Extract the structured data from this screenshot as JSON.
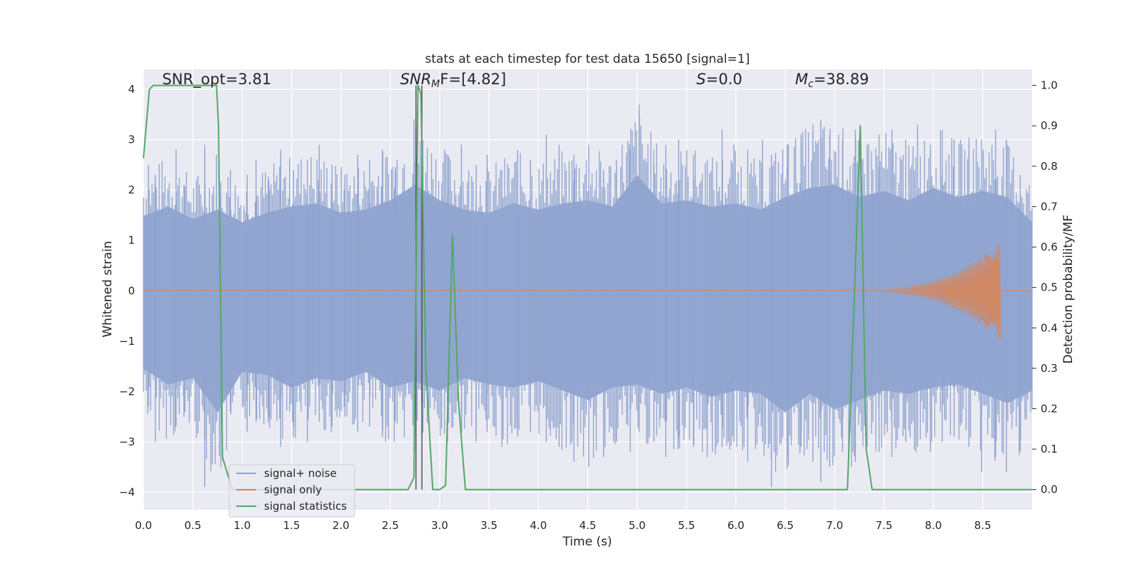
{
  "chart_data": {
    "type": "line",
    "title": "stats at each timestep for test data 15650 [signal=1]",
    "xlabel": "Time (s)",
    "ylabel_left": "Whitened strain",
    "ylabel_right": "Detection probability/MF",
    "xlim": [
      0.0,
      9.0
    ],
    "ylim_left": [
      -4.35,
      4.4
    ],
    "ylim_right": [
      -0.05,
      1.04
    ],
    "x_ticks": [
      "0.0",
      "0.5",
      "1.0",
      "1.5",
      "2.0",
      "2.5",
      "3.0",
      "3.5",
      "4.0",
      "4.5",
      "5.0",
      "5.5",
      "6.0",
      "6.5",
      "7.0",
      "7.5",
      "8.0",
      "8.5"
    ],
    "x_tick_values": [
      0.0,
      0.5,
      1.0,
      1.5,
      2.0,
      2.5,
      3.0,
      3.5,
      4.0,
      4.5,
      5.0,
      5.5,
      6.0,
      6.5,
      7.0,
      7.5,
      8.0,
      8.5
    ],
    "y_left_ticks": [
      "4",
      "3",
      "2",
      "1",
      "0",
      "−1",
      "−2",
      "−3",
      "−4"
    ],
    "y_left_tick_values": [
      4,
      3,
      2,
      1,
      0,
      -1,
      -2,
      -3,
      -4
    ],
    "y_right_ticks": [
      "1.0",
      "0.9",
      "0.8",
      "0.7",
      "0.6",
      "0.5",
      "0.4",
      "0.3",
      "0.2",
      "0.1",
      "0.0"
    ],
    "y_right_tick_values": [
      1.0,
      0.9,
      0.8,
      0.7,
      0.6,
      0.5,
      0.4,
      0.3,
      0.2,
      0.1,
      0.0
    ],
    "grid": true,
    "legend_placement": "lower-left",
    "annotations": [
      {
        "text": "SNR_opt=3.81",
        "x": 0.19,
        "y": 4.1
      },
      {
        "text": "SNR",
        "sub": "M",
        "suffix": "F=[4.82]",
        "italic": true,
        "x": 2.6,
        "y": 4.1
      },
      {
        "text": "S",
        "suffix": "=0.0",
        "italic": true,
        "x": 5.6,
        "y": 4.1
      },
      {
        "text": "M",
        "sub": "c",
        "suffix": "=38.89",
        "italic": true,
        "x": 6.6,
        "y": 4.1
      }
    ],
    "vertical_markers_x": [
      2.76,
      2.82
    ],
    "series": [
      {
        "name": "signal+ noise",
        "axis": "left",
        "color": "#8fa4cf",
        "envelope": {
          "x": [
            0.0,
            0.25,
            0.5,
            0.75,
            1.0,
            1.25,
            1.5,
            1.75,
            2.0,
            2.25,
            2.5,
            2.75,
            3.0,
            3.25,
            3.5,
            3.75,
            4.0,
            4.25,
            4.5,
            4.75,
            5.0,
            5.25,
            5.5,
            5.75,
            6.0,
            6.25,
            6.5,
            6.75,
            7.0,
            7.25,
            7.5,
            7.75,
            8.0,
            8.25,
            8.5,
            8.75,
            9.0
          ],
          "upper": [
            2.4,
            2.7,
            2.3,
            2.6,
            2.2,
            2.5,
            2.7,
            2.8,
            2.5,
            2.6,
            2.9,
            3.4,
            2.9,
            2.6,
            2.5,
            2.8,
            2.6,
            2.8,
            2.9,
            2.7,
            3.7,
            2.8,
            2.9,
            2.7,
            2.8,
            2.6,
            3.0,
            3.3,
            3.4,
            3.0,
            3.2,
            2.9,
            3.3,
            3.0,
            3.2,
            3.0,
            2.2
          ],
          "lower": [
            -2.5,
            -3.0,
            -2.8,
            -3.9,
            -2.6,
            -2.7,
            -3.1,
            -2.8,
            -2.9,
            -2.6,
            -3.1,
            -2.9,
            -3.2,
            -2.8,
            -3.0,
            -3.1,
            -2.9,
            -3.2,
            -3.5,
            -3.1,
            -3.0,
            -3.3,
            -3.1,
            -3.4,
            -3.2,
            -3.3,
            -3.9,
            -3.3,
            -3.8,
            -3.5,
            -3.2,
            -3.3,
            -3.1,
            -3.0,
            -3.3,
            -3.6,
            -3.2
          ]
        },
        "spikes_x": [
          0.05,
          0.12,
          0.33,
          0.41,
          0.62,
          0.74,
          0.88,
          1.05,
          1.14,
          1.27,
          1.39,
          1.52,
          1.66,
          1.78,
          1.91,
          2.04,
          2.17,
          2.29,
          2.42,
          2.55,
          2.74,
          2.83,
          3.08,
          3.22,
          3.37,
          3.48,
          3.63,
          3.79,
          3.92,
          4.08,
          4.21,
          4.36,
          4.51,
          4.66,
          4.79,
          4.93,
          5.02,
          5.17,
          5.29,
          5.42,
          5.57,
          5.71,
          5.86,
          5.98,
          6.12,
          6.27,
          6.36,
          6.52,
          6.66,
          6.78,
          6.86,
          6.95,
          7.08,
          7.21,
          7.33,
          7.45,
          7.58,
          7.72,
          7.84,
          7.97,
          8.09,
          8.21,
          8.36,
          8.49,
          8.63,
          8.74,
          8.88
        ],
        "spikes_hi": [
          2.5,
          2.3,
          2.8,
          2.1,
          2.9,
          2.7,
          2.4,
          2.3,
          2.6,
          2.2,
          2.8,
          2.4,
          2.6,
          2.9,
          2.5,
          2.3,
          2.7,
          2.6,
          2.8,
          2.4,
          3.4,
          3.0,
          2.7,
          2.9,
          2.5,
          2.7,
          2.4,
          2.8,
          2.6,
          3.1,
          2.9,
          2.7,
          2.9,
          2.4,
          2.6,
          2.8,
          3.7,
          2.5,
          2.9,
          3.0,
          2.7,
          2.6,
          3.2,
          2.9,
          2.8,
          3.0,
          2.7,
          2.9,
          3.1,
          3.3,
          3.4,
          3.1,
          3.0,
          3.2,
          2.9,
          3.1,
          3.2,
          3.0,
          3.3,
          2.9,
          3.2,
          3.0,
          2.9,
          3.0,
          3.2,
          3.0,
          2.3
        ],
        "spikes_lo": [
          -2.3,
          -3.0,
          -2.7,
          -2.5,
          -3.9,
          -2.6,
          -2.4,
          -2.8,
          -2.6,
          -2.5,
          -3.1,
          -2.9,
          -3.0,
          -2.6,
          -2.7,
          -2.5,
          -2.8,
          -2.7,
          -2.9,
          -2.6,
          -3.2,
          -2.8,
          -3.0,
          -2.7,
          -3.0,
          -2.8,
          -3.1,
          -2.9,
          -2.8,
          -3.0,
          -3.1,
          -3.4,
          -3.5,
          -3.3,
          -3.0,
          -3.2,
          -2.8,
          -3.0,
          -3.3,
          -2.9,
          -3.1,
          -3.3,
          -3.1,
          -3.0,
          -3.4,
          -3.0,
          -3.9,
          -3.3,
          -3.1,
          -3.4,
          -3.8,
          -3.5,
          -3.2,
          -3.4,
          -3.1,
          -3.2,
          -3.3,
          -3.0,
          -3.1,
          -3.2,
          -3.0,
          -2.9,
          -3.1,
          -3.6,
          -3.3,
          -3.6,
          -3.2
        ]
      },
      {
        "name": "signal only",
        "axis": "left",
        "color": "#dd8452",
        "chirp": {
          "x_start": 7.0,
          "x_end": 8.68,
          "amplitude_end": 1.0
        }
      },
      {
        "name": "signal statistics",
        "axis": "right",
        "color": "#55a868",
        "x": [
          0.0,
          0.06,
          0.1,
          0.15,
          0.3,
          0.5,
          0.7,
          0.74,
          0.76,
          0.8,
          0.9,
          1.5,
          2.0,
          2.5,
          2.68,
          2.74,
          2.78,
          2.81,
          2.86,
          2.93,
          3.0,
          3.06,
          3.13,
          3.19,
          3.26,
          4.0,
          5.0,
          6.0,
          7.0,
          7.13,
          7.2,
          7.26,
          7.32,
          7.38,
          8.0,
          8.5,
          9.0
        ],
        "y": [
          0.82,
          0.99,
          1.0,
          1.0,
          1.0,
          1.0,
          1.0,
          1.0,
          0.9,
          0.08,
          0.0,
          0.0,
          0.0,
          0.0,
          0.0,
          0.03,
          1.0,
          0.98,
          0.3,
          0.0,
          0.0,
          0.01,
          0.63,
          0.22,
          0.0,
          0.0,
          0.0,
          0.0,
          0.0,
          0.0,
          0.48,
          0.9,
          0.1,
          0.0,
          0.0,
          0.0,
          0.0
        ]
      }
    ]
  }
}
